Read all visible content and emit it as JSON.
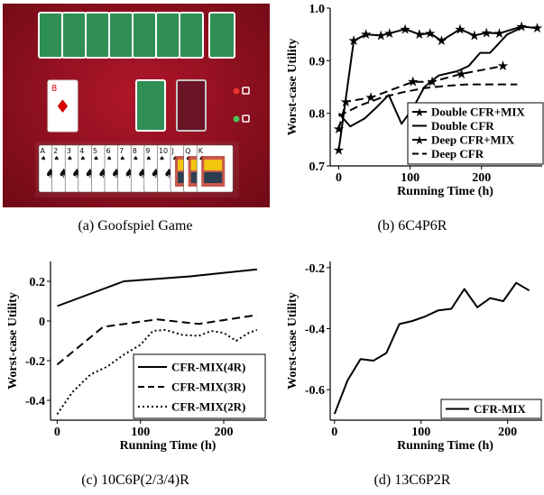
{
  "captions": {
    "a": "(a) Goofspiel Game",
    "b": "(b) 6C4P6R",
    "c": "(c) 10C6P(2/3/4)R",
    "d": "(d) 13C6P2R"
  },
  "game": {
    "colors": {
      "felt": "#8e0f1c",
      "card_back": "#2f8f55",
      "card_back_dark": "#6a1325",
      "light_red": "#e8322c",
      "light_green": "#4cc35a"
    },
    "hand": {
      "suit": "♠",
      "ranks": [
        "A",
        "2",
        "3",
        "4",
        "5",
        "6",
        "7",
        "8",
        "9",
        "10",
        "J",
        "Q",
        "K"
      ]
    },
    "prize_card": {
      "rank": "8",
      "suit": "♦"
    }
  },
  "chart_data": [
    {
      "id": "b",
      "type": "line",
      "xlabel": "Running Time (h)",
      "ylabel": "Worst-case Utility",
      "xlim": [
        -12,
        285
      ],
      "ylim": [
        0.7,
        1.0
      ],
      "xticks": [
        0,
        100,
        200
      ],
      "yticks": [
        0.7,
        0.8,
        0.9,
        1.0
      ],
      "ytick_labels": [
        "0.7",
        "0.8",
        "0.9",
        "1.0"
      ],
      "legend_position": "lower-right",
      "series": [
        {
          "name": "Double CFR+MIX",
          "style": "solid",
          "marker": "star",
          "x": [
            0,
            21,
            38,
            59,
            71,
            93,
            113,
            128,
            144,
            170,
            190,
            207,
            225,
            256,
            278
          ],
          "y": [
            0.73,
            0.938,
            0.95,
            0.948,
            0.952,
            0.96,
            0.95,
            0.952,
            0.938,
            0.96,
            0.948,
            0.953,
            0.952,
            0.965,
            0.962
          ]
        },
        {
          "name": "Double CFR",
          "style": "solid",
          "marker": "none",
          "x": [
            0,
            16,
            36,
            52,
            70,
            88,
            104,
            120,
            140,
            166,
            182,
            198,
            212,
            236,
            260
          ],
          "y": [
            0.8,
            0.775,
            0.79,
            0.81,
            0.835,
            0.78,
            0.81,
            0.85,
            0.872,
            0.88,
            0.89,
            0.915,
            0.915,
            0.95,
            0.965
          ]
        },
        {
          "name": "Deep CFR+MIX",
          "style": "dashed",
          "marker": "star",
          "x": [
            0,
            10,
            45,
            104,
            131,
            172,
            230
          ],
          "y": [
            0.77,
            0.822,
            0.83,
            0.86,
            0.86,
            0.875,
            0.89
          ]
        },
        {
          "name": "Deep CFR",
          "style": "dashed",
          "marker": "none",
          "x": [
            0,
            30,
            60,
            90,
            120,
            150,
            180,
            220,
            250
          ],
          "y": [
            0.795,
            0.815,
            0.83,
            0.84,
            0.848,
            0.852,
            0.855,
            0.855,
            0.855
          ]
        }
      ]
    },
    {
      "id": "c",
      "type": "line",
      "xlabel": "Running Time (h)",
      "ylabel": "Worst-case Utility",
      "xlim": [
        -8,
        252
      ],
      "ylim": [
        -0.5,
        0.3
      ],
      "xticks": [
        0,
        100,
        200
      ],
      "yticks": [
        -0.4,
        -0.2,
        0.0,
        0.2
      ],
      "ytick_labels": [
        "-0.4",
        "-0.2",
        "0",
        "0.2"
      ],
      "legend_position": "lower-right",
      "series": [
        {
          "name": "CFR-MIX(4R)",
          "style": "solid",
          "x": [
            0,
            80,
            160,
            240
          ],
          "y": [
            0.075,
            0.2,
            0.225,
            0.26
          ]
        },
        {
          "name": "CFR-MIX(3R)",
          "style": "dashed",
          "x": [
            0,
            55,
            120,
            170,
            240
          ],
          "y": [
            -0.22,
            -0.03,
            0.008,
            -0.015,
            0.03
          ]
        },
        {
          "name": "CFR-MIX(2R)",
          "style": "dotted",
          "x": [
            0,
            18,
            40,
            60,
            80,
            100,
            115,
            130,
            150,
            170,
            185,
            200,
            215,
            230,
            240
          ],
          "y": [
            -0.47,
            -0.36,
            -0.27,
            -0.23,
            -0.17,
            -0.12,
            -0.05,
            -0.045,
            -0.07,
            -0.075,
            -0.05,
            -0.06,
            -0.1,
            -0.06,
            -0.045
          ]
        }
      ]
    },
    {
      "id": "d",
      "type": "line",
      "xlabel": "Running Time (h)",
      "ylabel": "Worst-case Utility",
      "xlim": [
        -5,
        240
      ],
      "ylim": [
        -0.7,
        -0.18
      ],
      "xticks": [
        0,
        100,
        200
      ],
      "yticks": [
        -0.6,
        -0.4,
        -0.2
      ],
      "ytick_labels": [
        "-0.6",
        "-0.4",
        "-0.2"
      ],
      "legend_position": "lower-right",
      "series": [
        {
          "name": "CFR-MIX",
          "style": "solid",
          "x": [
            0,
            15,
            30,
            45,
            60,
            75,
            90,
            105,
            120,
            135,
            150,
            165,
            180,
            195,
            210,
            225
          ],
          "y": [
            -0.68,
            -0.57,
            -0.5,
            -0.505,
            -0.48,
            -0.385,
            -0.375,
            -0.36,
            -0.34,
            -0.335,
            -0.27,
            -0.33,
            -0.3,
            -0.31,
            -0.25,
            -0.275
          ]
        }
      ]
    }
  ]
}
